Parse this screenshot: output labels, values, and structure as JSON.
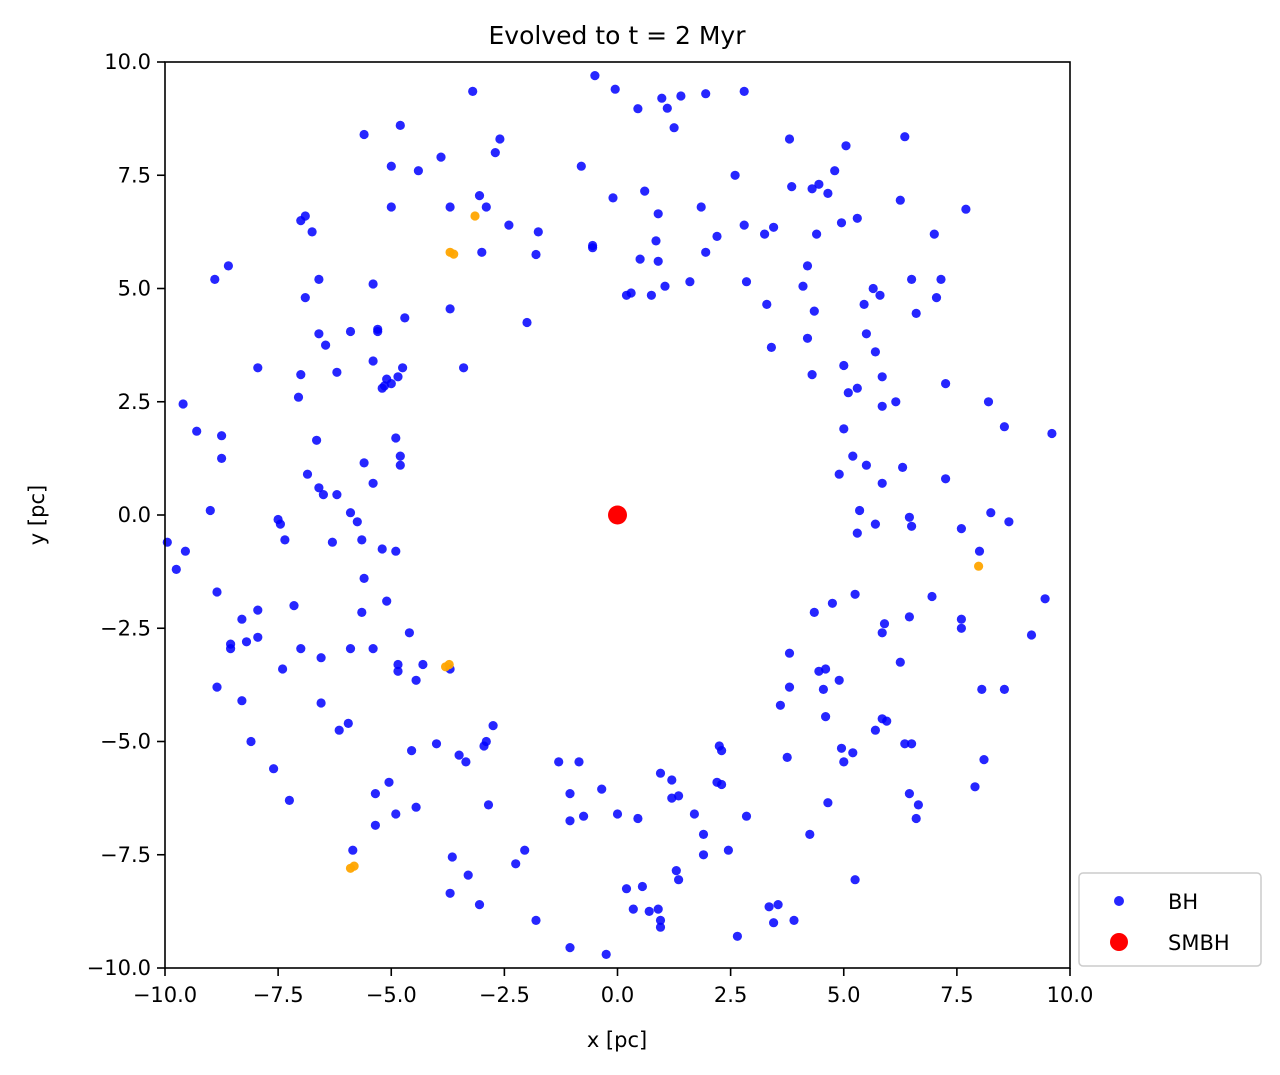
{
  "chart_data": {
    "type": "scatter",
    "title": "Evolved to t = 2 Myr",
    "xlabel": "x [pc]",
    "ylabel": "y [pc]",
    "xlim": [
      -10,
      10
    ],
    "ylim": [
      -10,
      10
    ],
    "xticks": [
      -10,
      -7.5,
      -5,
      -2.5,
      0,
      2.5,
      5,
      7.5,
      10
    ],
    "yticks": [
      -10,
      -7.5,
      -5,
      -2.5,
      0,
      2.5,
      5,
      7.5,
      10
    ],
    "xtick_labels": [
      "−10.0",
      "−7.5",
      "−5.0",
      "−2.5",
      "0.0",
      "2.5",
      "5.0",
      "7.5",
      "10.0"
    ],
    "ytick_labels": [
      "−10.0",
      "−7.5",
      "−5.0",
      "−2.5",
      "0.0",
      "2.5",
      "5.0",
      "7.5",
      "10.0"
    ],
    "grid": false,
    "legend_position": "outside-bottom-right",
    "series": [
      {
        "name": "BH",
        "color": "#0000ff",
        "points": [
          [
            -0.5,
            9.7
          ],
          [
            -3.2,
            9.35
          ],
          [
            2.8,
            9.35
          ],
          [
            -0.05,
            9.4
          ],
          [
            0.98,
            9.2
          ],
          [
            1.4,
            9.25
          ],
          [
            1.95,
            9.3
          ],
          [
            0.45,
            8.97
          ],
          [
            1.1,
            8.98
          ],
          [
            -5.6,
            8.4
          ],
          [
            -4.8,
            8.6
          ],
          [
            -2.6,
            8.3
          ],
          [
            -2.7,
            8.0
          ],
          [
            1.25,
            8.55
          ],
          [
            5.05,
            8.15
          ],
          [
            6.35,
            8.35
          ],
          [
            3.8,
            8.3
          ],
          [
            -5.0,
            7.7
          ],
          [
            -4.4,
            7.6
          ],
          [
            -3.9,
            7.9
          ],
          [
            -0.8,
            7.7
          ],
          [
            2.6,
            7.5
          ],
          [
            4.8,
            7.6
          ],
          [
            3.85,
            7.25
          ],
          [
            4.45,
            7.3
          ],
          [
            4.65,
            7.1
          ],
          [
            -3.05,
            7.05
          ],
          [
            -2.9,
            6.8
          ],
          [
            -0.1,
            7.0
          ],
          [
            0.6,
            7.15
          ],
          [
            1.85,
            6.8
          ],
          [
            0.9,
            6.65
          ],
          [
            -5.0,
            6.8
          ],
          [
            -3.7,
            6.8
          ],
          [
            4.3,
            7.2
          ],
          [
            -6.9,
            6.6
          ],
          [
            -7.0,
            6.5
          ],
          [
            -6.75,
            6.25
          ],
          [
            -2.4,
            6.4
          ],
          [
            -1.75,
            6.25
          ],
          [
            0.85,
            6.05
          ],
          [
            2.2,
            6.15
          ],
          [
            2.8,
            6.4
          ],
          [
            3.45,
            6.35
          ],
          [
            3.25,
            6.2
          ],
          [
            4.4,
            6.2
          ],
          [
            4.95,
            6.45
          ],
          [
            5.3,
            6.55
          ],
          [
            6.25,
            6.95
          ],
          [
            7.0,
            6.2
          ],
          [
            7.7,
            6.75
          ],
          [
            -8.6,
            5.5
          ],
          [
            -8.9,
            5.2
          ],
          [
            -6.6,
            5.2
          ],
          [
            -5.4,
            5.1
          ],
          [
            -3.0,
            5.8
          ],
          [
            -1.8,
            5.75
          ],
          [
            -0.55,
            5.9
          ],
          [
            -0.55,
            5.95
          ],
          [
            0.5,
            5.65
          ],
          [
            0.9,
            5.6
          ],
          [
            1.95,
            5.8
          ],
          [
            4.2,
            5.5
          ],
          [
            5.65,
            5.0
          ],
          [
            6.5,
            5.2
          ],
          [
            7.15,
            5.2
          ],
          [
            -6.9,
            4.8
          ],
          [
            -4.7,
            4.35
          ],
          [
            -3.7,
            4.55
          ],
          [
            -2.0,
            4.25
          ],
          [
            0.2,
            4.85
          ],
          [
            0.3,
            4.9
          ],
          [
            0.75,
            4.85
          ],
          [
            1.05,
            5.05
          ],
          [
            1.6,
            5.15
          ],
          [
            2.85,
            5.15
          ],
          [
            3.3,
            4.65
          ],
          [
            4.1,
            5.05
          ],
          [
            4.35,
            4.5
          ],
          [
            5.45,
            4.65
          ],
          [
            5.8,
            4.85
          ],
          [
            6.6,
            4.45
          ],
          [
            7.05,
            4.8
          ],
          [
            -6.6,
            4.0
          ],
          [
            -6.45,
            3.75
          ],
          [
            -5.9,
            4.05
          ],
          [
            -5.3,
            4.05
          ],
          [
            -5.3,
            4.1
          ],
          [
            -3.4,
            3.25
          ],
          [
            4.2,
            3.9
          ],
          [
            5.5,
            4.0
          ],
          [
            5.7,
            3.6
          ],
          [
            -7.95,
            3.25
          ],
          [
            -7.0,
            3.1
          ],
          [
            -6.2,
            3.15
          ],
          [
            -5.4,
            3.4
          ],
          [
            -5.1,
            3.0
          ],
          [
            -4.85,
            3.05
          ],
          [
            -4.75,
            3.25
          ],
          [
            -5.15,
            2.85
          ],
          [
            -5.0,
            2.9
          ],
          [
            -5.2,
            2.8
          ],
          [
            3.4,
            3.7
          ],
          [
            4.3,
            3.1
          ],
          [
            5.0,
            3.3
          ],
          [
            5.85,
            3.05
          ],
          [
            7.25,
            2.9
          ],
          [
            5.3,
            2.8
          ],
          [
            5.1,
            2.7
          ],
          [
            5.85,
            2.4
          ],
          [
            6.15,
            2.5
          ],
          [
            8.2,
            2.5
          ],
          [
            -9.6,
            2.45
          ],
          [
            -7.05,
            2.6
          ],
          [
            -9.3,
            1.85
          ],
          [
            -8.75,
            1.75
          ],
          [
            -6.65,
            1.65
          ],
          [
            -4.9,
            1.7
          ],
          [
            -8.75,
            1.25
          ],
          [
            -5.6,
            1.15
          ],
          [
            -4.8,
            1.1
          ],
          [
            -4.8,
            1.3
          ],
          [
            5.0,
            1.9
          ],
          [
            5.2,
            1.3
          ],
          [
            5.5,
            1.1
          ],
          [
            6.3,
            1.05
          ],
          [
            8.55,
            1.95
          ],
          [
            9.6,
            1.8
          ],
          [
            -6.85,
            0.9
          ],
          [
            -6.6,
            0.6
          ],
          [
            -6.5,
            0.45
          ],
          [
            -6.2,
            0.45
          ],
          [
            -5.4,
            0.7
          ],
          [
            -5.9,
            0.05
          ],
          [
            -9.0,
            0.1
          ],
          [
            4.9,
            0.9
          ],
          [
            5.85,
            0.7
          ],
          [
            7.25,
            0.8
          ],
          [
            5.35,
            0.1
          ],
          [
            6.45,
            -0.05
          ],
          [
            6.5,
            -0.25
          ],
          [
            5.7,
            -0.2
          ],
          [
            5.3,
            -0.4
          ],
          [
            7.6,
            -0.3
          ],
          [
            8.25,
            0.05
          ],
          [
            8.65,
            -0.15
          ],
          [
            -7.5,
            -0.1
          ],
          [
            -7.45,
            -0.2
          ],
          [
            -7.35,
            -0.55
          ],
          [
            -6.3,
            -0.6
          ],
          [
            -5.75,
            -0.15
          ],
          [
            -5.65,
            -0.55
          ],
          [
            -5.2,
            -0.75
          ],
          [
            -4.9,
            -0.8
          ],
          [
            -9.95,
            -0.6
          ],
          [
            -9.55,
            -0.8
          ],
          [
            -9.75,
            -1.2
          ],
          [
            -5.6,
            -1.4
          ],
          [
            -8.85,
            -1.7
          ],
          [
            -5.1,
            -1.9
          ],
          [
            -5.65,
            -2.15
          ],
          [
            -7.15,
            -2.0
          ],
          [
            -7.95,
            -2.1
          ],
          [
            -8.3,
            -2.3
          ],
          [
            8.0,
            -0.8
          ],
          [
            4.35,
            -2.15
          ],
          [
            4.75,
            -1.95
          ],
          [
            5.25,
            -1.75
          ],
          [
            6.95,
            -1.8
          ],
          [
            7.6,
            -2.3
          ],
          [
            7.6,
            -2.5
          ],
          [
            9.45,
            -1.85
          ],
          [
            9.15,
            -2.65
          ],
          [
            -8.55,
            -2.85
          ],
          [
            -8.55,
            -2.95
          ],
          [
            -7.95,
            -2.7
          ],
          [
            -8.2,
            -2.8
          ],
          [
            -7.0,
            -2.95
          ],
          [
            -6.55,
            -3.15
          ],
          [
            -5.9,
            -2.95
          ],
          [
            -5.4,
            -2.95
          ],
          [
            -4.6,
            -2.6
          ],
          [
            -4.85,
            -3.3
          ],
          [
            -4.85,
            -3.45
          ],
          [
            -4.3,
            -3.3
          ],
          [
            -4.45,
            -3.65
          ],
          [
            -7.4,
            -3.4
          ],
          [
            -3.7,
            -3.4
          ],
          [
            5.9,
            -2.4
          ],
          [
            5.85,
            -2.6
          ],
          [
            6.45,
            -2.25
          ],
          [
            6.25,
            -3.25
          ],
          [
            3.8,
            -3.05
          ],
          [
            4.45,
            -3.45
          ],
          [
            4.6,
            -3.4
          ],
          [
            4.9,
            -3.65
          ],
          [
            3.8,
            -3.8
          ],
          [
            4.55,
            -3.85
          ],
          [
            8.05,
            -3.85
          ],
          [
            8.55,
            -3.85
          ],
          [
            -8.85,
            -3.8
          ],
          [
            -8.3,
            -4.1
          ],
          [
            -6.55,
            -4.15
          ],
          [
            -8.1,
            -5.0
          ],
          [
            -6.15,
            -4.75
          ],
          [
            -5.95,
            -4.6
          ],
          [
            -4.0,
            -5.05
          ],
          [
            -4.55,
            -5.2
          ],
          [
            -3.5,
            -5.3
          ],
          [
            -3.35,
            -5.45
          ],
          [
            -2.95,
            -5.1
          ],
          [
            -2.9,
            -5.0
          ],
          [
            -2.75,
            -4.65
          ],
          [
            3.6,
            -4.2
          ],
          [
            4.6,
            -4.45
          ],
          [
            5.85,
            -4.5
          ],
          [
            5.95,
            -4.55
          ],
          [
            5.7,
            -4.75
          ],
          [
            4.95,
            -5.15
          ],
          [
            5.0,
            -5.45
          ],
          [
            5.2,
            -5.25
          ],
          [
            6.35,
            -5.05
          ],
          [
            6.5,
            -5.05
          ],
          [
            2.25,
            -5.1
          ],
          [
            2.3,
            -5.2
          ],
          [
            3.75,
            -5.35
          ],
          [
            8.1,
            -5.4
          ],
          [
            -7.6,
            -5.6
          ],
          [
            -7.25,
            -6.3
          ],
          [
            -5.05,
            -5.9
          ],
          [
            -5.35,
            -6.15
          ],
          [
            -4.45,
            -6.45
          ],
          [
            -5.35,
            -6.85
          ],
          [
            -4.9,
            -6.6
          ],
          [
            -2.85,
            -6.4
          ],
          [
            -1.3,
            -5.45
          ],
          [
            -0.85,
            -5.45
          ],
          [
            -1.05,
            -6.15
          ],
          [
            -0.35,
            -6.05
          ],
          [
            0.95,
            -5.7
          ],
          [
            1.2,
            -5.85
          ],
          [
            1.2,
            -6.25
          ],
          [
            1.35,
            -6.2
          ],
          [
            2.2,
            -5.9
          ],
          [
            2.3,
            -5.95
          ],
          [
            1.7,
            -6.6
          ],
          [
            -1.05,
            -6.75
          ],
          [
            -0.75,
            -6.65
          ],
          [
            0.0,
            -6.6
          ],
          [
            0.45,
            -6.7
          ],
          [
            2.85,
            -6.65
          ],
          [
            4.65,
            -6.35
          ],
          [
            6.45,
            -6.15
          ],
          [
            6.65,
            -6.4
          ],
          [
            6.6,
            -6.7
          ],
          [
            7.9,
            -6.0
          ],
          [
            -5.85,
            -7.4
          ],
          [
            -3.65,
            -7.55
          ],
          [
            -3.3,
            -7.95
          ],
          [
            -2.25,
            -7.7
          ],
          [
            -2.05,
            -7.4
          ],
          [
            1.9,
            -7.05
          ],
          [
            1.9,
            -7.5
          ],
          [
            1.3,
            -7.85
          ],
          [
            1.35,
            -8.05
          ],
          [
            2.45,
            -7.4
          ],
          [
            4.25,
            -7.05
          ],
          [
            5.25,
            -8.05
          ],
          [
            -3.7,
            -8.35
          ],
          [
            -3.05,
            -8.6
          ],
          [
            0.2,
            -8.25
          ],
          [
            0.55,
            -8.2
          ],
          [
            0.35,
            -8.7
          ],
          [
            0.7,
            -8.75
          ],
          [
            0.9,
            -8.7
          ],
          [
            0.95,
            -8.95
          ],
          [
            0.95,
            -9.1
          ],
          [
            3.35,
            -8.65
          ],
          [
            3.55,
            -8.6
          ],
          [
            3.45,
            -9.0
          ],
          [
            3.9,
            -8.95
          ],
          [
            -1.8,
            -8.95
          ],
          [
            -1.05,
            -9.55
          ],
          [
            -0.25,
            -9.7
          ],
          [
            2.65,
            -9.3
          ]
        ]
      },
      {
        "name": "",
        "color": "#ffa500",
        "points": [
          [
            -3.15,
            6.6
          ],
          [
            -3.7,
            5.8
          ],
          [
            -3.62,
            5.76
          ],
          [
            7.98,
            -1.13
          ],
          [
            -3.72,
            -3.3
          ],
          [
            -3.8,
            -3.35
          ],
          [
            -5.9,
            -7.8
          ],
          [
            -5.82,
            -7.75
          ]
        ]
      },
      {
        "name": "SMBH",
        "color": "#ff0000",
        "points": [
          [
            0,
            0
          ]
        ]
      }
    ]
  }
}
